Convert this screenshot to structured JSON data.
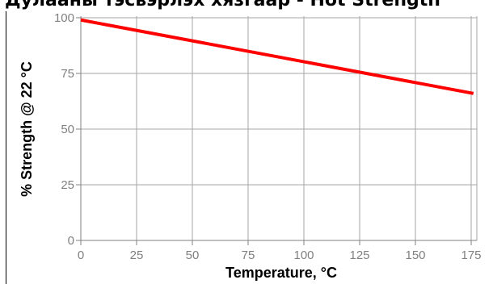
{
  "title": "Дулааны тэсвэрлэх хязгаар - Hot Strength",
  "chart_data": {
    "type": "line",
    "title": "Дулааны тэсвэрлэх хязгаар - Hot Strength",
    "xlabel": "Temperature, °C",
    "ylabel": "% Strength @ 22 °C",
    "x_ticks": [
      "0",
      "25",
      "50",
      "75",
      "100",
      "125",
      "150",
      "175"
    ],
    "y_ticks": [
      "0",
      "25",
      "50",
      "75",
      "100"
    ],
    "xlim": [
      0,
      180
    ],
    "ylim": [
      0,
      100
    ],
    "grid": true,
    "series": [
      {
        "x": [
          0,
          176
        ],
        "y": [
          99,
          66
        ],
        "color": "#ff0000"
      }
    ]
  }
}
